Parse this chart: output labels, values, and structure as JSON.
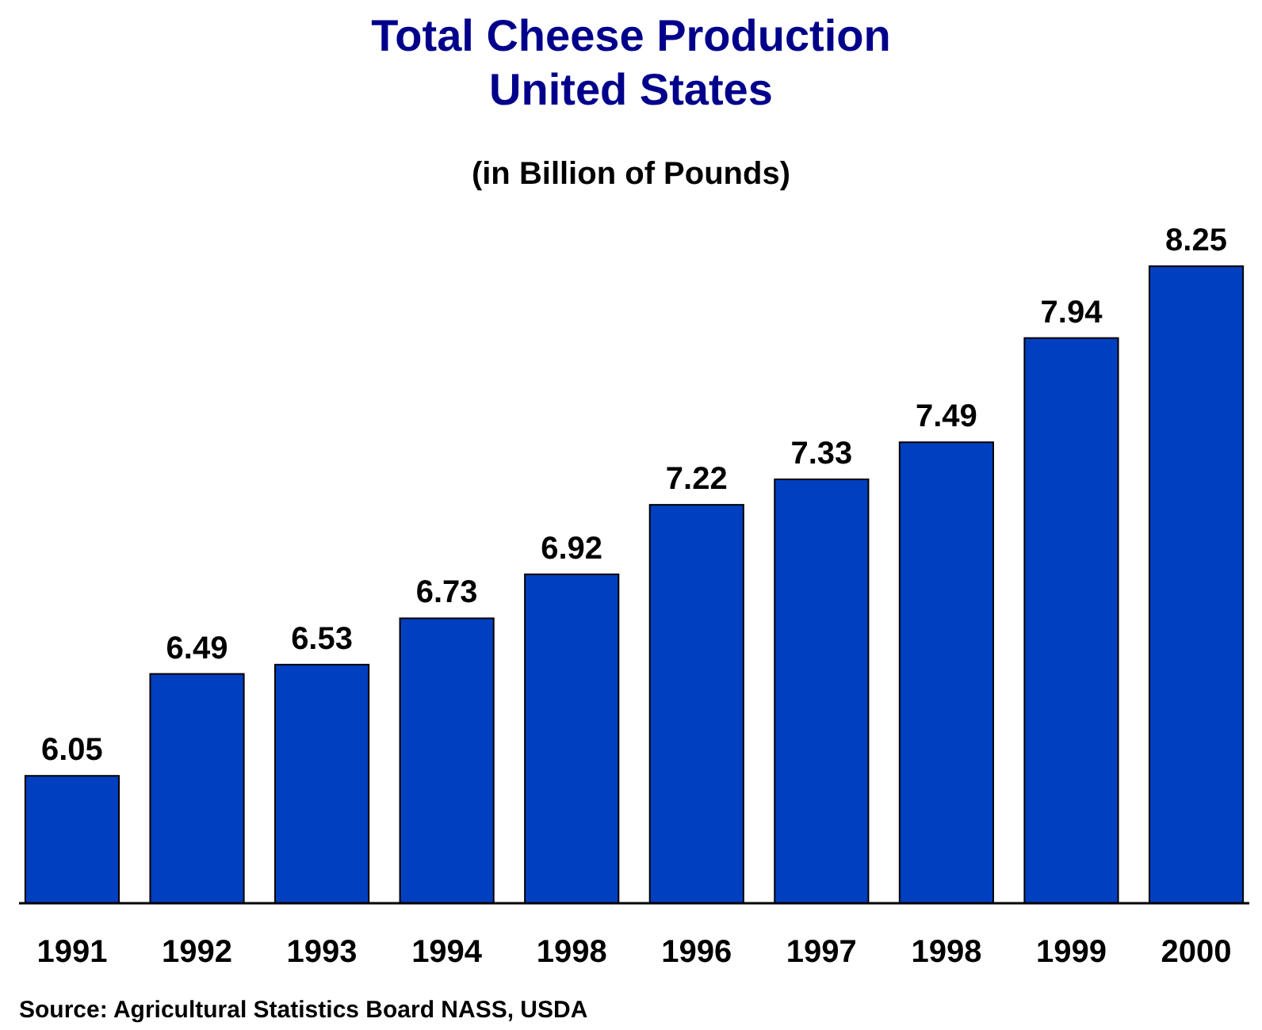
{
  "chart_data": {
    "type": "bar",
    "title": "Total Cheese Production\nUnited States",
    "subtitle": "(in Billion of Pounds)",
    "categories": [
      "1991",
      "1992",
      "1993",
      "1994",
      "1998",
      "1996",
      "1997",
      "1998",
      "1999",
      "2000"
    ],
    "values": [
      6.05,
      6.49,
      6.53,
      6.73,
      6.92,
      7.22,
      7.33,
      7.49,
      7.94,
      8.25
    ],
    "color": "#0040c0",
    "ylim": [
      5.5,
      8.25
    ],
    "tick_labels": "x",
    "data_labels": true,
    "grid": false,
    "annotations": [
      "Source: Agricultural Statistics Board NASS, USDA"
    ]
  }
}
